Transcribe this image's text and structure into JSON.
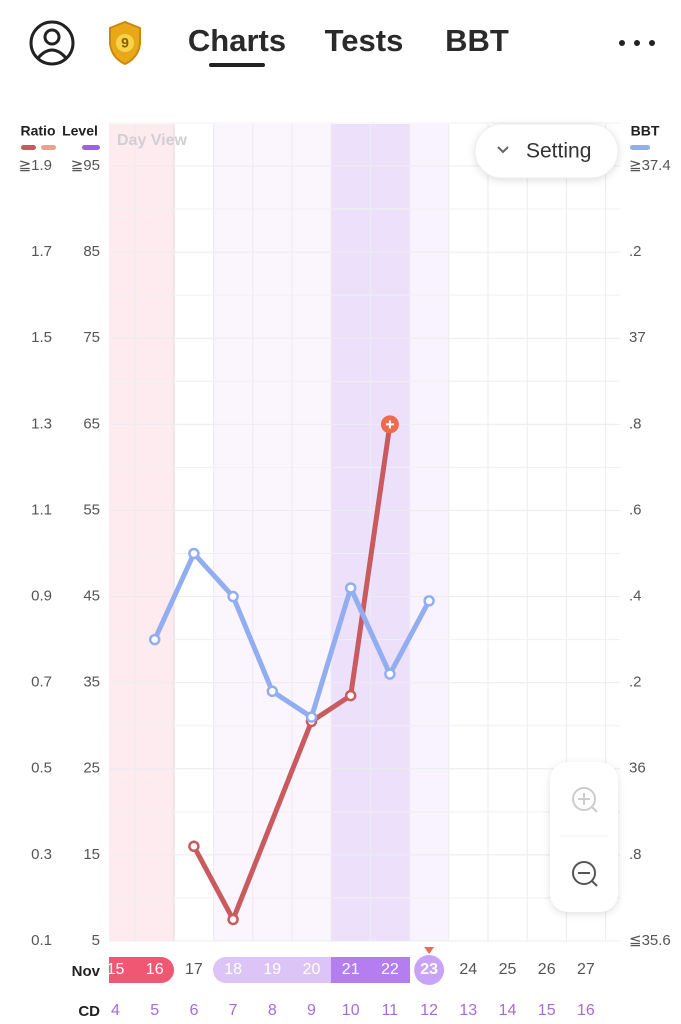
{
  "header": {
    "badge": "9",
    "tabs": [
      "Charts",
      "Tests",
      "BBT"
    ]
  },
  "chart_data": {
    "type": "line",
    "view_label": "Day View",
    "setting_label": "Setting",
    "month_label": "Nov",
    "cycle_day_label": "CD",
    "categories": [
      "15",
      "16",
      "17",
      "18",
      "19",
      "20",
      "21",
      "22",
      "23",
      "24",
      "25",
      "26",
      "27"
    ],
    "cycle_days": [
      "4",
      "5",
      "6",
      "7",
      "8",
      "9",
      "10",
      "11",
      "12",
      "13",
      "14",
      "15",
      "16"
    ],
    "y_label": "Ratio",
    "ylim": [
      0.1,
      1.9
    ],
    "yticks": [
      {
        "value": 1.9,
        "label": "≧1.9"
      },
      1.7,
      1.5,
      1.3,
      1.1,
      0.9,
      0.7,
      0.5,
      0.3,
      0.1
    ],
    "y2_label": "Level",
    "y2lim": [
      5,
      95
    ],
    "y2ticks": [
      {
        "value": 95,
        "label": "≧95"
      },
      85,
      75,
      65,
      55,
      45,
      35,
      25,
      15,
      5
    ],
    "y3_label": "BBT",
    "y3lim": [
      35.6,
      37.4
    ],
    "y3ticks": [
      {
        "value": 37.4,
        "label": "≧37.4"
      },
      {
        "value": 37.2,
        "label": ".2"
      },
      37,
      {
        "value": 36.8,
        "label": ".8"
      },
      {
        "value": 36.6,
        "label": ".6"
      },
      {
        "value": 36.4,
        "label": ".4"
      },
      {
        "value": 36.2,
        "label": ".2"
      },
      36,
      {
        "value": 35.8,
        "label": ".8"
      },
      {
        "value": 35.6,
        "label": "≦35.6"
      }
    ],
    "series": [
      {
        "name": "Ratio",
        "color": "#c95b5f",
        "values": [
          null,
          null,
          0.32,
          0.15,
          null,
          0.61,
          0.67,
          1.3,
          null,
          null,
          null,
          null,
          null
        ]
      },
      {
        "name": "BBT",
        "color": "#92aef0",
        "axis": "y3",
        "values": [
          null,
          36.3,
          36.5,
          36.4,
          36.18,
          36.12,
          36.42,
          36.22,
          36.39,
          null,
          null,
          null,
          null
        ]
      }
    ],
    "grid": true
  }
}
